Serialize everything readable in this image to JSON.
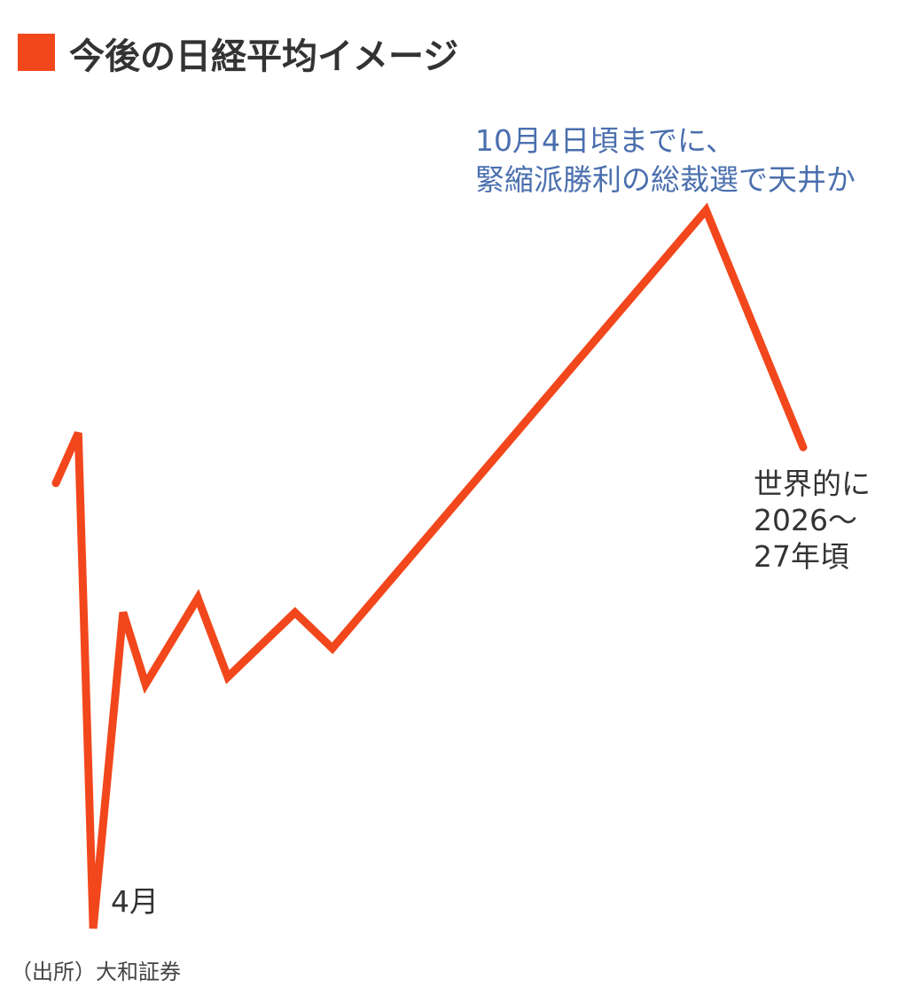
{
  "chart_data": {
    "type": "line",
    "title": "今後の日経平均イメージ",
    "xlabel": "",
    "ylabel": "",
    "axes_visible": false,
    "grid": false,
    "x": [
      0,
      3,
      5,
      9,
      12,
      19,
      23,
      32,
      37,
      87,
      100
    ],
    "series": [
      {
        "values": [
          62,
          69,
          0,
          44,
          34,
          46,
          35,
          44,
          39,
          100,
          67
        ]
      }
    ],
    "annotations": {
      "trough": "4月",
      "peak": [
        "10月4日頃までに、",
        "緊縮派勝利の総裁選で天井か"
      ],
      "end": [
        "世界的に",
        "2026～",
        "27年頃"
      ]
    },
    "source": "（出所）大和証券"
  },
  "colors": {
    "line": "#f2471c",
    "title_marker": "#f2471c",
    "peak_annotation": "#4a6fae",
    "text": "#333333"
  }
}
